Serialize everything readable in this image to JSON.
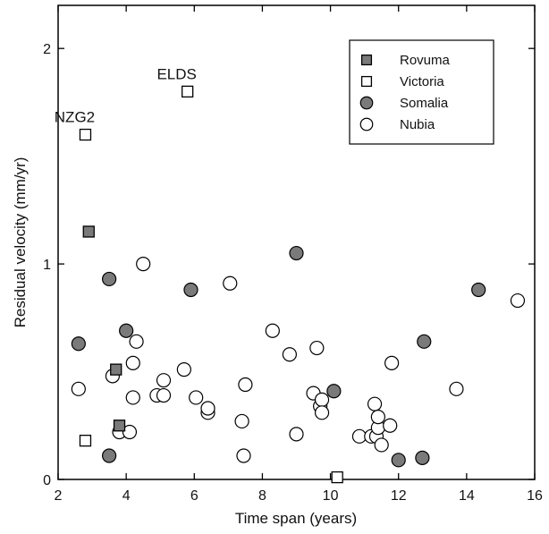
{
  "chart_data": {
    "type": "scatter",
    "title": "",
    "xlabel": "Time span (years)",
    "ylabel": "Residual velocity (mm/yr)",
    "xlim": [
      2,
      16
    ],
    "ylim": [
      0,
      2.2
    ],
    "xticks": [
      2,
      4,
      6,
      8,
      10,
      12,
      14,
      16
    ],
    "yticks": [
      0,
      1,
      2
    ],
    "grid": false,
    "legend_position": "top-right",
    "series": [
      {
        "name": "Rovuma",
        "marker": "square",
        "fill": "#7a7a7a",
        "points": [
          [
            2.9,
            1.15
          ],
          [
            3.7,
            0.51
          ],
          [
            3.8,
            0.25
          ]
        ]
      },
      {
        "name": "Victoria",
        "marker": "square",
        "fill": "#ffffff",
        "points": [
          [
            2.8,
            1.6
          ],
          [
            5.8,
            1.8
          ],
          [
            2.8,
            0.18
          ],
          [
            10.2,
            0.01
          ]
        ]
      },
      {
        "name": "Somalia",
        "marker": "circle",
        "fill": "#7a7a7a",
        "points": [
          [
            2.6,
            0.63
          ],
          [
            3.5,
            0.93
          ],
          [
            3.5,
            0.11
          ],
          [
            4.0,
            0.69
          ],
          [
            5.9,
            0.88
          ],
          [
            9.0,
            1.05
          ],
          [
            10.1,
            0.41
          ],
          [
            12.0,
            0.09
          ],
          [
            12.7,
            0.1
          ],
          [
            12.75,
            0.64
          ],
          [
            14.35,
            0.88
          ]
        ]
      },
      {
        "name": "Nubia",
        "marker": "circle",
        "fill": "#ffffff",
        "points": [
          [
            2.6,
            0.42
          ],
          [
            3.6,
            0.48
          ],
          [
            3.8,
            0.22
          ],
          [
            4.1,
            0.22
          ],
          [
            4.2,
            0.54
          ],
          [
            4.2,
            0.38
          ],
          [
            4.3,
            0.64
          ],
          [
            4.5,
            1.0
          ],
          [
            4.9,
            0.39
          ],
          [
            5.1,
            0.39
          ],
          [
            5.1,
            0.46
          ],
          [
            5.7,
            0.51
          ],
          [
            6.05,
            0.38
          ],
          [
            6.4,
            0.31
          ],
          [
            6.4,
            0.33
          ],
          [
            7.05,
            0.91
          ],
          [
            7.4,
            0.27
          ],
          [
            7.45,
            0.11
          ],
          [
            7.5,
            0.44
          ],
          [
            8.3,
            0.69
          ],
          [
            8.8,
            0.58
          ],
          [
            9.0,
            0.21
          ],
          [
            9.5,
            0.4
          ],
          [
            9.6,
            0.61
          ],
          [
            9.7,
            0.34
          ],
          [
            9.75,
            0.37
          ],
          [
            9.75,
            0.31
          ],
          [
            10.85,
            0.2
          ],
          [
            11.2,
            0.2
          ],
          [
            11.3,
            0.35
          ],
          [
            11.35,
            0.2
          ],
          [
            11.4,
            0.24
          ],
          [
            11.4,
            0.29
          ],
          [
            11.5,
            0.16
          ],
          [
            11.75,
            0.25
          ],
          [
            11.8,
            0.54
          ],
          [
            13.7,
            0.42
          ],
          [
            15.5,
            0.83
          ]
        ]
      }
    ],
    "annotations": [
      {
        "text": "NZG2",
        "x": 2.8,
        "y": 1.6
      },
      {
        "text": "ELDS",
        "x": 5.8,
        "y": 1.8
      }
    ]
  }
}
